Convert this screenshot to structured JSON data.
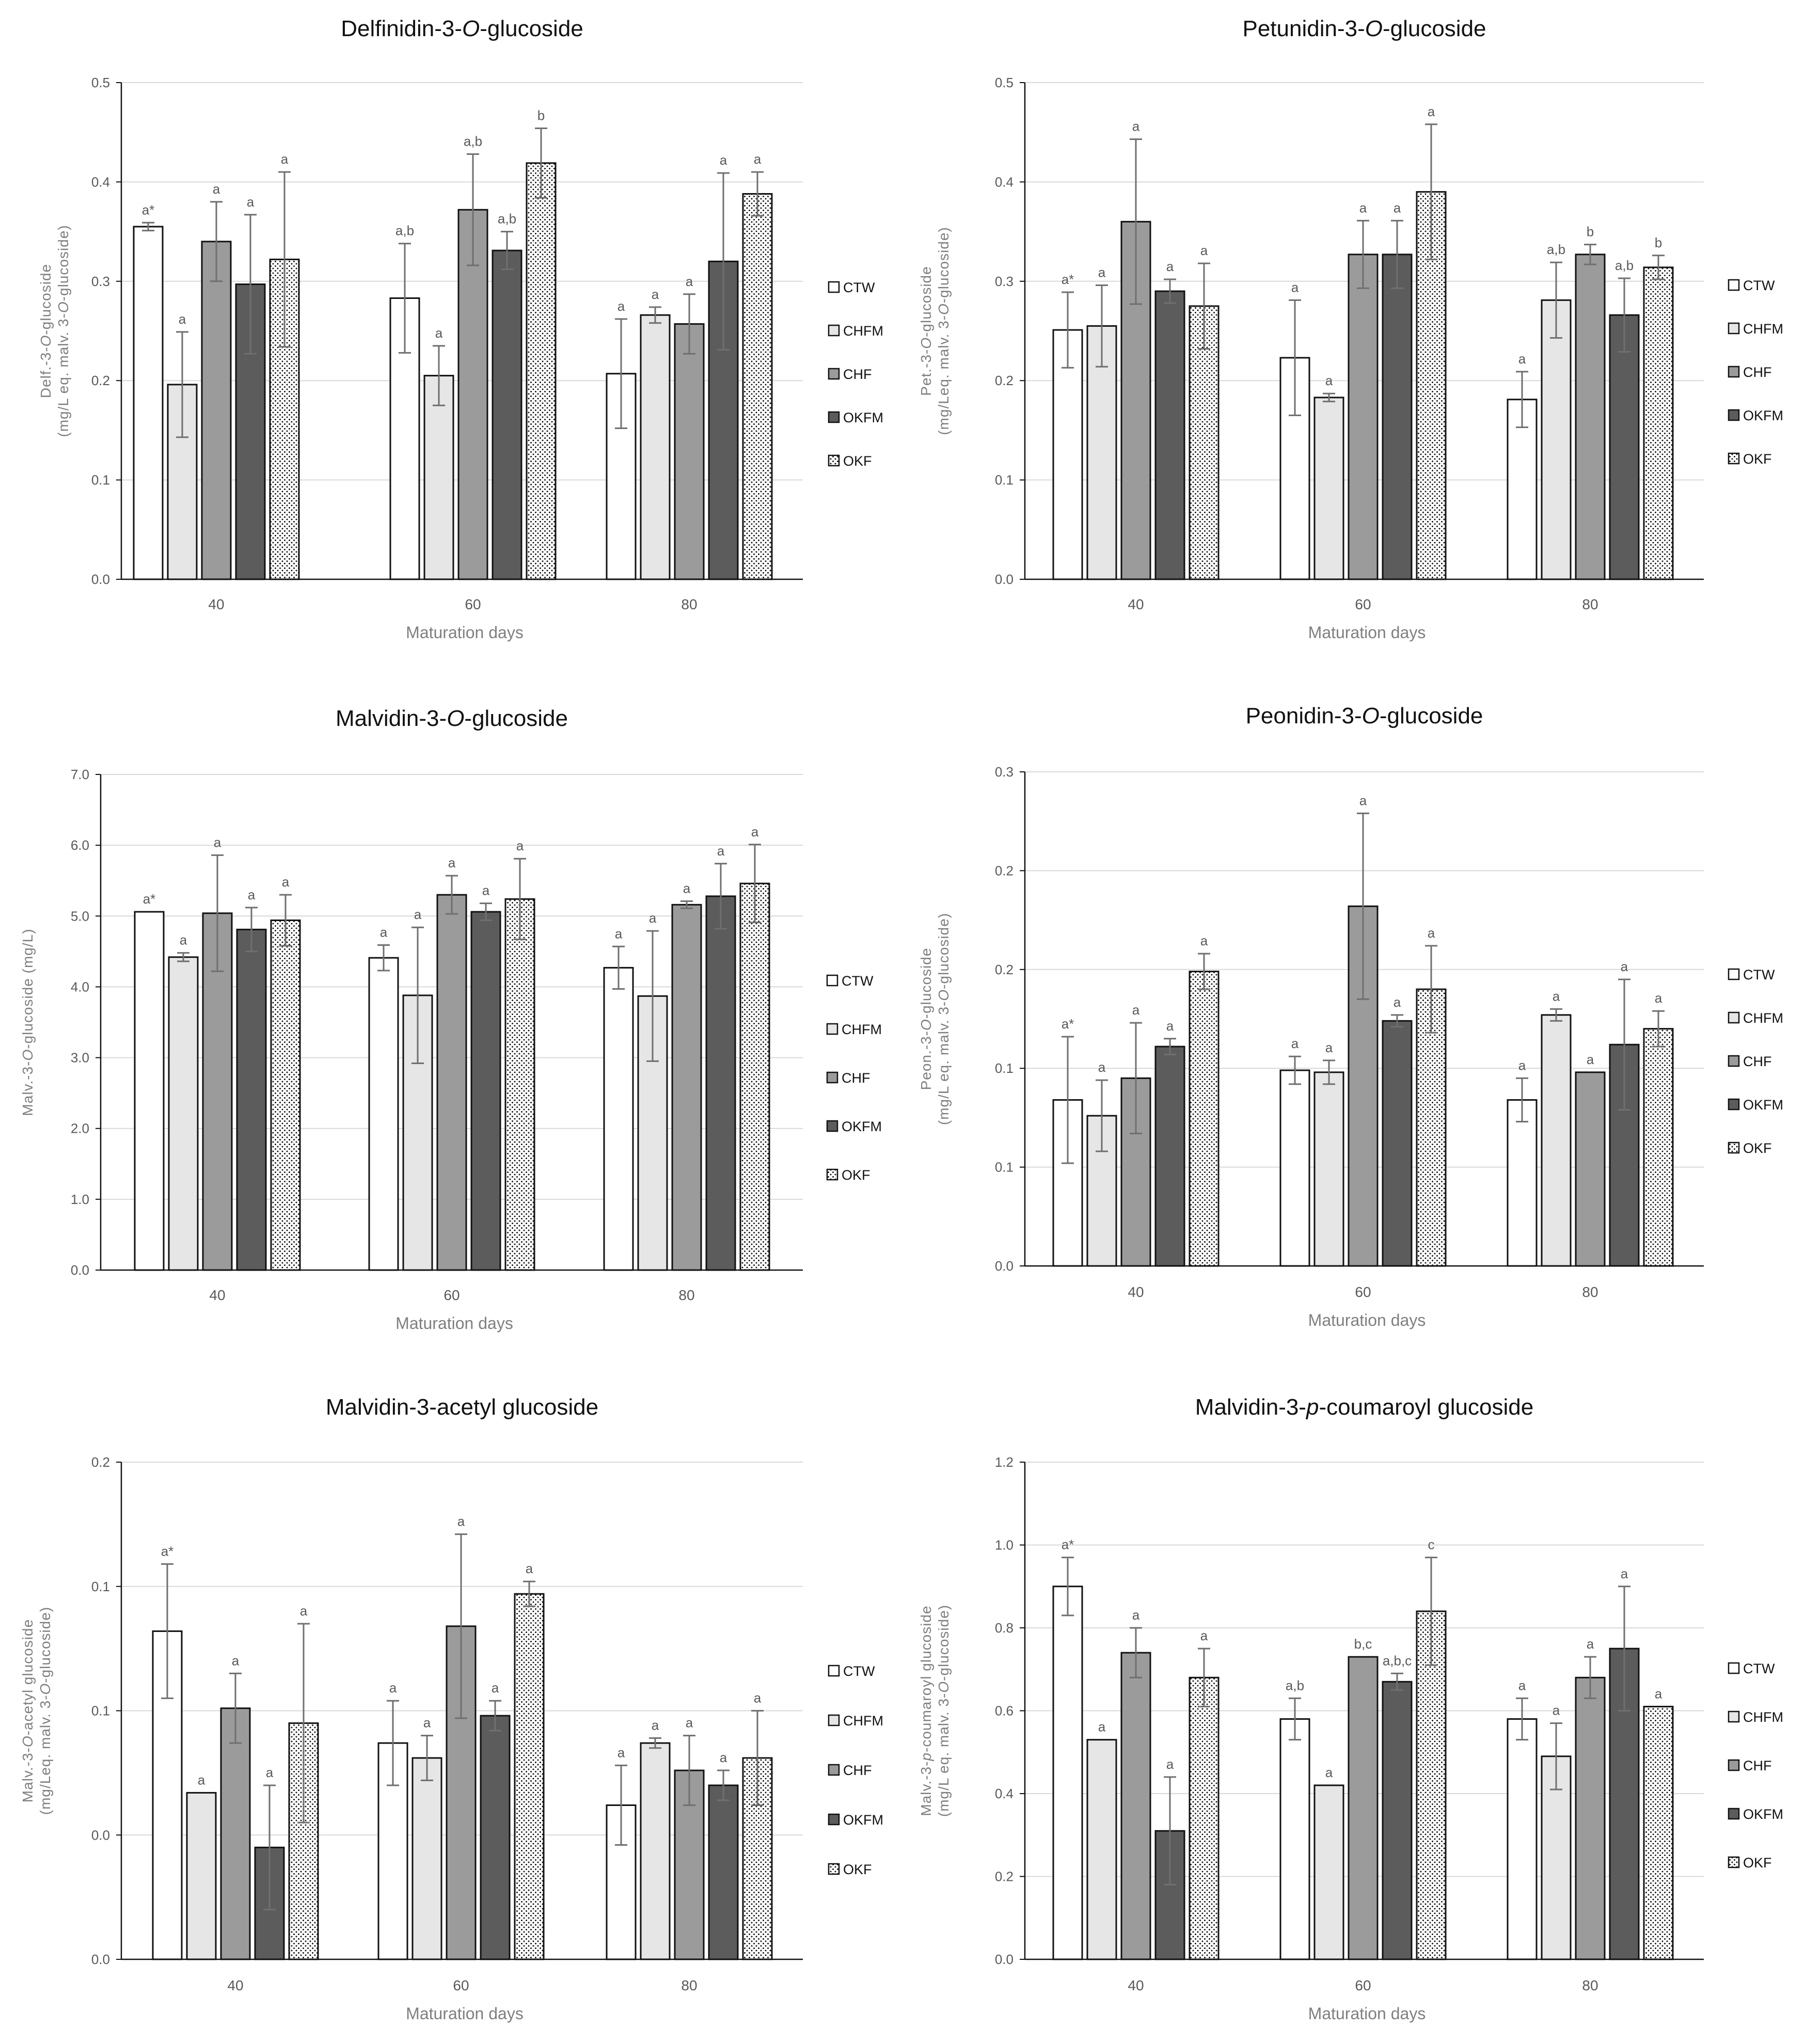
{
  "chart_data": [
    {
      "type": "bar",
      "title": "Delfinidin-3-O-glucoside",
      "title_parts": [
        {
          "t": "Delfinidin-3-"
        },
        {
          "t": "O",
          "i": true
        },
        {
          "t": "-glucoside"
        }
      ],
      "xlabel": "Maturation days",
      "ylabel_lines": [
        [
          {
            "t": "Delf.-3-"
          },
          {
            "t": "O",
            "i": true
          },
          {
            "t": "-glucoside"
          }
        ],
        [
          {
            "t": "(mg/L eq. malv. 3-"
          },
          {
            "t": "O",
            "i": true
          },
          {
            "t": "-glucoside)"
          }
        ]
      ],
      "categories": [
        "40",
        "60",
        "80"
      ],
      "ylim": [
        0,
        0.5
      ],
      "yticks": [
        "0.0",
        "0.1",
        "0.2",
        "0.3",
        "0.4",
        "0.5"
      ],
      "series": [
        {
          "name": "CTW",
          "values": [
            0.355,
            0.283,
            0.207
          ],
          "err": [
            0.004,
            0.055,
            0.055
          ],
          "sig": [
            "a*",
            "a,b",
            "a"
          ]
        },
        {
          "name": "CHFM",
          "values": [
            0.196,
            0.205,
            0.266
          ],
          "err": [
            0.053,
            0.03,
            0.008
          ],
          "sig": [
            "a",
            "a",
            "a"
          ]
        },
        {
          "name": "CHF",
          "values": [
            0.34,
            0.372,
            0.257
          ],
          "err": [
            0.04,
            0.056,
            0.03
          ],
          "sig": [
            "a",
            "a,b",
            "a"
          ]
        },
        {
          "name": "OKFM",
          "values": [
            0.297,
            0.331,
            0.32
          ],
          "err": [
            0.07,
            0.019,
            0.089
          ],
          "sig": [
            "a",
            "a,b",
            "a"
          ]
        },
        {
          "name": "OKF",
          "values": [
            0.322,
            0.419,
            0.388
          ],
          "err": [
            0.088,
            0.035,
            0.022
          ],
          "sig": [
            "a",
            "b",
            "a"
          ]
        }
      ]
    },
    {
      "type": "bar",
      "title": "Petunidin-3-O-glucoside",
      "title_parts": [
        {
          "t": "Petunidin-3-"
        },
        {
          "t": "O",
          "i": true
        },
        {
          "t": "-glucoside"
        }
      ],
      "xlabel": "Maturation days",
      "ylabel_lines": [
        [
          {
            "t": "Pet.-3-"
          },
          {
            "t": "O",
            "i": true
          },
          {
            "t": "-glucoside"
          }
        ],
        [
          {
            "t": "(mg/Leq. malv. 3-"
          },
          {
            "t": "O",
            "i": true
          },
          {
            "t": "-glucoside)"
          }
        ]
      ],
      "categories": [
        "40",
        "60",
        "80"
      ],
      "ylim": [
        0,
        0.5
      ],
      "yticks": [
        "0.0",
        "0.1",
        "0.2",
        "0.3",
        "0.4",
        "0.5"
      ],
      "series": [
        {
          "name": "CTW",
          "values": [
            0.251,
            0.223,
            0.181
          ],
          "err": [
            0.038,
            0.058,
            0.028
          ],
          "sig": [
            "a*",
            "a",
            "a"
          ]
        },
        {
          "name": "CHFM",
          "values": [
            0.255,
            0.183,
            0.281
          ],
          "err": [
            0.041,
            0.004,
            0.038
          ],
          "sig": [
            "a",
            "a",
            "a,b"
          ]
        },
        {
          "name": "CHF",
          "values": [
            0.36,
            0.327,
            0.327
          ],
          "err": [
            0.083,
            0.034,
            0.01
          ],
          "sig": [
            "a",
            "a",
            "b"
          ]
        },
        {
          "name": "OKFM",
          "values": [
            0.29,
            0.327,
            0.266
          ],
          "err": [
            0.012,
            0.034,
            0.037
          ],
          "sig": [
            "a",
            "a",
            "a,b"
          ]
        },
        {
          "name": "OKF",
          "values": [
            0.275,
            0.39,
            0.314
          ],
          "err": [
            0.043,
            0.068,
            0.012
          ],
          "sig": [
            "a",
            "a",
            "b"
          ]
        }
      ]
    },
    {
      "type": "bar",
      "title": "Malvidin-3-O-glucoside",
      "title_parts": [
        {
          "t": "Malvidin-3-"
        },
        {
          "t": "O",
          "i": true
        },
        {
          "t": "-glucoside"
        }
      ],
      "xlabel": "Maturation days",
      "ylabel_lines": [
        [
          {
            "t": "Malv.-3-"
          },
          {
            "t": "O",
            "i": true
          },
          {
            "t": "-glucoside (mg/L)"
          }
        ]
      ],
      "categories": [
        "40",
        "60",
        "80"
      ],
      "ylim": [
        0,
        7
      ],
      "yticks": [
        "0.0",
        "1.0",
        "2.0",
        "3.0",
        "4.0",
        "5.0",
        "6.0",
        "7.0"
      ],
      "series": [
        {
          "name": "CTW",
          "values": [
            5.06,
            4.41,
            4.27
          ],
          "err": [
            0.0,
            0.18,
            0.3
          ],
          "sig": [
            "a*",
            "a",
            "a"
          ]
        },
        {
          "name": "CHFM",
          "values": [
            4.42,
            3.88,
            3.87
          ],
          "err": [
            0.06,
            0.96,
            0.92
          ],
          "sig": [
            "a",
            "a",
            "a"
          ]
        },
        {
          "name": "CHF",
          "values": [
            5.04,
            5.3,
            5.16
          ],
          "err": [
            0.82,
            0.27,
            0.05
          ],
          "sig": [
            "a",
            "a",
            "a"
          ]
        },
        {
          "name": "OKFM",
          "values": [
            4.81,
            5.06,
            5.28
          ],
          "err": [
            0.31,
            0.12,
            0.46
          ],
          "sig": [
            "a",
            "a",
            "a"
          ]
        },
        {
          "name": "OKF",
          "values": [
            4.94,
            5.24,
            5.46
          ],
          "err": [
            0.36,
            0.57,
            0.55
          ],
          "sig": [
            "a",
            "a",
            "a"
          ]
        }
      ]
    },
    {
      "type": "bar",
      "title": "Peonidin-3-O-glucoside",
      "title_parts": [
        {
          "t": "Peonidin-3-"
        },
        {
          "t": "O",
          "i": true
        },
        {
          "t": "-glucoside"
        }
      ],
      "xlabel": "Maturation days",
      "ylabel_lines": [
        [
          {
            "t": "Peon.-3-"
          },
          {
            "t": "O",
            "i": true
          },
          {
            "t": "-glucoside"
          }
        ],
        [
          {
            "t": "(mg/L eq. malv. 3-"
          },
          {
            "t": "O",
            "i": true
          },
          {
            "t": "-glucoside)"
          }
        ]
      ],
      "categories": [
        "40",
        "60",
        "80"
      ],
      "ylim": [
        0,
        0.25
      ],
      "yticks": [
        "0.0",
        "0.1",
        "0.1",
        "0.2",
        "0.2",
        "0.3"
      ],
      "series": [
        {
          "name": "CTW",
          "values": [
            0.084,
            0.099,
            0.084
          ],
          "err": [
            0.032,
            0.007,
            0.011
          ],
          "sig": [
            "a*",
            "a",
            "a"
          ]
        },
        {
          "name": "CHFM",
          "values": [
            0.076,
            0.098,
            0.127
          ],
          "err": [
            0.018,
            0.006,
            0.003
          ],
          "sig": [
            "a",
            "a",
            "a"
          ]
        },
        {
          "name": "CHF",
          "values": [
            0.095,
            0.182,
            0.098
          ],
          "err": [
            0.028,
            0.047,
            0.0
          ],
          "sig": [
            "a",
            "a",
            "a"
          ]
        },
        {
          "name": "OKFM",
          "values": [
            0.111,
            0.124,
            0.112
          ],
          "err": [
            0.004,
            0.003,
            0.033
          ],
          "sig": [
            "a",
            "a",
            "a"
          ]
        },
        {
          "name": "OKF",
          "values": [
            0.149,
            0.14,
            0.12
          ],
          "err": [
            0.009,
            0.022,
            0.009
          ],
          "sig": [
            "a",
            "a",
            "a"
          ]
        }
      ]
    },
    {
      "type": "bar",
      "title": "Malvidin-3-acetyl glucoside",
      "title_parts": [
        {
          "t": "Malvidin-3-acetyl glucoside"
        }
      ],
      "xlabel": "Maturation days",
      "ylabel_lines": [
        [
          {
            "t": "Malv.-3-"
          },
          {
            "t": "O",
            "i": true
          },
          {
            "t": "-acetyl glucoside"
          }
        ],
        [
          {
            "t": "(mg/Leq. malv. 3-"
          },
          {
            "t": "O",
            "i": true
          },
          {
            "t": "-glucoside)"
          }
        ]
      ],
      "categories": [
        "40",
        "60",
        "80"
      ],
      "ylim": [
        0,
        0.2
      ],
      "yticks": [
        "0.0",
        "0.0",
        "0.1",
        "0.1",
        "0.2"
      ],
      "series": [
        {
          "name": "CTW",
          "values": [
            0.132,
            0.087,
            0.062
          ],
          "err": [
            0.027,
            0.017,
            0.016
          ],
          "sig": [
            "a*",
            "a",
            "a"
          ]
        },
        {
          "name": "CHFM",
          "values": [
            0.067,
            0.081,
            0.087
          ],
          "err": [
            0.0,
            0.009,
            0.002
          ],
          "sig": [
            "a",
            "a",
            "a"
          ]
        },
        {
          "name": "CHF",
          "values": [
            0.101,
            0.134,
            0.076
          ],
          "err": [
            0.014,
            0.037,
            0.014
          ],
          "sig": [
            "a",
            "a",
            "a"
          ]
        },
        {
          "name": "OKFM",
          "values": [
            0.045,
            0.098,
            0.07
          ],
          "err": [
            0.025,
            0.006,
            0.006
          ],
          "sig": [
            "a",
            "a",
            "a"
          ]
        },
        {
          "name": "OKF",
          "values": [
            0.095,
            0.147,
            0.081
          ],
          "err": [
            0.04,
            0.005,
            0.019
          ],
          "sig": [
            "a",
            "a",
            "a"
          ]
        }
      ]
    },
    {
      "type": "bar",
      "title": "Malvidin-3-p-coumaroyl glucoside",
      "title_parts": [
        {
          "t": "Malvidin-3-"
        },
        {
          "t": "p",
          "i": true
        },
        {
          "t": "-coumaroyl glucoside"
        }
      ],
      "xlabel": "Maturation days",
      "ylabel_lines": [
        [
          {
            "t": "Malv.-3-"
          },
          {
            "t": "p",
            "i": true
          },
          {
            "t": "-coumaroyl glucoside"
          }
        ],
        [
          {
            "t": "(mg/L eq. malv. 3-"
          },
          {
            "t": "O",
            "i": true
          },
          {
            "t": "-glucoside)"
          }
        ]
      ],
      "categories": [
        "40",
        "60",
        "80"
      ],
      "ylim": [
        0,
        1.2
      ],
      "yticks": [
        "0.0",
        "0.2",
        "0.4",
        "0.6",
        "0.8",
        "1.0",
        "1.2"
      ],
      "series": [
        {
          "name": "CTW",
          "values": [
            0.9,
            0.58,
            0.58
          ],
          "err": [
            0.07,
            0.05,
            0.05
          ],
          "sig": [
            "a*",
            "a,b",
            "a"
          ]
        },
        {
          "name": "CHFM",
          "values": [
            0.53,
            0.42,
            0.49
          ],
          "err": [
            0.0,
            0.0,
            0.08
          ],
          "sig": [
            "a",
            "a",
            "a"
          ]
        },
        {
          "name": "CHF",
          "values": [
            0.74,
            0.73,
            0.68
          ],
          "err": [
            0.06,
            0.0,
            0.05
          ],
          "sig": [
            "a",
            "b,c",
            "a"
          ]
        },
        {
          "name": "OKFM",
          "values": [
            0.31,
            0.67,
            0.75
          ],
          "err": [
            0.13,
            0.02,
            0.15
          ],
          "sig": [
            "a",
            "a,b,c",
            "a"
          ]
        },
        {
          "name": "OKF",
          "values": [
            0.68,
            0.84,
            0.61
          ],
          "err": [
            0.07,
            0.13,
            0.0
          ],
          "sig": [
            "a",
            "c",
            "a"
          ]
        }
      ]
    }
  ],
  "series_style": {
    "CTW": {
      "fill": "#ffffff",
      "pattern": "none"
    },
    "CHFM": {
      "fill": "#e6e6e6",
      "pattern": "none"
    },
    "CHF": {
      "fill": "#9b9b9b",
      "pattern": "none"
    },
    "OKFM": {
      "fill": "#5c5c5c",
      "pattern": "none"
    },
    "OKF": {
      "fill": "#ffffff",
      "pattern": "dots"
    }
  },
  "colors": {
    "bar_stroke": "#111111",
    "gridline": "#d9d9d9",
    "axis": "#111111",
    "error_bar": "#6f6f6f"
  }
}
